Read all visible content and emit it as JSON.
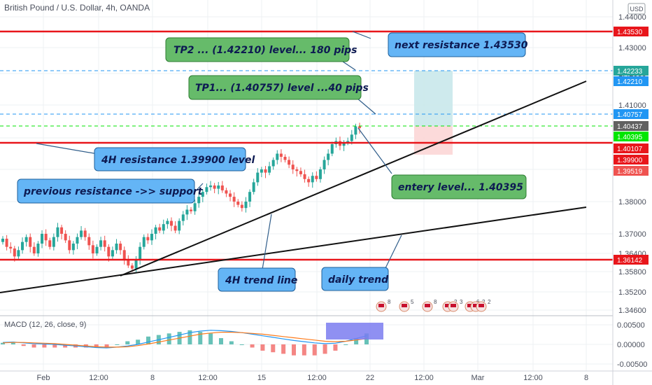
{
  "header": {
    "title": "British Pound / U.S. Dollar, 4h, OANDA",
    "currency_badge": "USD"
  },
  "price_labels": [
    {
      "value": "1.43530",
      "price": 1.4353,
      "color": "#e8161b"
    },
    {
      "value": "1.42233",
      "price": 1.42233,
      "color": "#26a69a"
    },
    {
      "value": "1.42210",
      "price": 1.4221,
      "color": "#2196f3"
    },
    {
      "value": "1.40757",
      "price": 1.40757,
      "color": "#2196f3"
    },
    {
      "value": "1.40437",
      "price": 1.40437,
      "color": "#616161"
    },
    {
      "value": "1.40395",
      "price": 1.40395,
      "color": "#00e600"
    },
    {
      "value": "1.40107",
      "price": 1.40107,
      "color": "#e8161b"
    },
    {
      "value": "1.39900",
      "price": 1.399,
      "color": "#e8161b"
    },
    {
      "value": "1.39519",
      "price": 1.39519,
      "color": "#ef5350"
    },
    {
      "value": "1.36142",
      "price": 1.36142,
      "color": "#e8161b"
    }
  ],
  "annotations": {
    "tp2": "TP2 ... (1.42210) level... 180 pips",
    "next_resistance": "next resistance 1.43530",
    "tp1": "TP1... (1.40757) level ...40 pips",
    "resistance_4h": "4H resistance 1.39900 level",
    "previous_resistance": "previous resistance ->> support",
    "entry": "entery level... 1.40395",
    "trend_4h": "4H trend line",
    "daily_trend": "daily trend"
  },
  "event_badges": [
    "8",
    "5",
    "8",
    "2",
    "3",
    "6",
    "2",
    "2"
  ],
  "macd": {
    "label": "MACD (12, 26, close, 9)",
    "ticks": [
      "0.00500",
      "0.00000",
      "-0.00500"
    ]
  },
  "colors": {
    "up": "#26a69a",
    "down": "#ef5350",
    "resistance": "#e8161b",
    "target": "#2196f3",
    "entry": "#00e600",
    "box_green": "#c9e8eb",
    "box_red": "#fcd6d6",
    "callout_blue": "#64b5f6",
    "callout_green": "#66bb6a",
    "macd_line": "#2196f3",
    "signal_line": "#ff7b1c"
  },
  "chart_data": {
    "type": "candlestick",
    "title": "British Pound / U.S. Dollar, 4h, OANDA",
    "ylim": [
      1.343,
      1.444
    ],
    "y_ticks": [
      1.346,
      1.352,
      1.358,
      1.364,
      1.37,
      1.38,
      1.39,
      1.4,
      1.41,
      1.42,
      1.43,
      1.44
    ],
    "x_ticks": [
      "Feb",
      "12:00",
      "8",
      "12:00",
      "15",
      "12:00",
      "22",
      "12:00",
      "Mar",
      "12:00",
      "8"
    ],
    "close": [
      1.3685,
      1.366,
      1.3655,
      1.363,
      1.365,
      1.3675,
      1.369,
      1.366,
      1.364,
      1.367,
      1.37,
      1.368,
      1.366,
      1.369,
      1.372,
      1.37,
      1.368,
      1.365,
      1.367,
      1.369,
      1.371,
      1.369,
      1.3665,
      1.364,
      1.366,
      1.368,
      1.366,
      1.363,
      1.365,
      1.367,
      1.365,
      1.362,
      1.36,
      1.359,
      1.362,
      1.366,
      1.369,
      1.368,
      1.37,
      1.372,
      1.371,
      1.373,
      1.374,
      1.3725,
      1.371,
      1.374,
      1.376,
      1.3775,
      1.377,
      1.3795,
      1.3815,
      1.383,
      1.3845,
      1.385,
      1.384,
      1.385,
      1.3835,
      1.3825,
      1.3815,
      1.38,
      1.379,
      1.378,
      1.38,
      1.383,
      1.386,
      1.389,
      1.39,
      1.389,
      1.391,
      1.393,
      1.395,
      1.394,
      1.393,
      1.3915,
      1.39,
      1.3895,
      1.3885,
      1.387,
      1.386,
      1.388,
      1.387,
      1.39,
      1.393,
      1.395,
      1.398,
      1.399,
      1.3975,
      1.3985,
      1.399,
      1.401,
      1.4035,
      1.403
    ],
    "series": [
      {
        "name": "MACD",
        "values": [
          0.0005,
          0.0006,
          0.0004,
          0.0002,
          0.0001,
          0.0,
          -0.0002,
          -0.0004,
          -0.0006,
          -0.0008,
          -0.0009,
          -0.0007,
          -0.0004,
          0.0,
          0.0006,
          0.0012,
          0.0018,
          0.0024,
          0.003,
          0.0034,
          0.0036,
          0.0035,
          0.0033,
          0.003,
          0.0026,
          0.0022,
          0.0018,
          0.0014,
          0.001,
          0.0007,
          0.0004,
          0.0002,
          0.0003,
          0.0008,
          0.0015,
          0.0022
        ]
      },
      {
        "name": "Signal",
        "values": [
          0.0004,
          0.0005,
          0.0005,
          0.0004,
          0.0003,
          0.0002,
          0.0,
          -0.0002,
          -0.0004,
          -0.0006,
          -0.0007,
          -0.0007,
          -0.0006,
          -0.0003,
          0.0001,
          0.0006,
          0.0011,
          0.0016,
          0.0021,
          0.0026,
          0.0029,
          0.0031,
          0.0031,
          0.003,
          0.0028,
          0.0026,
          0.0023,
          0.002,
          0.0017,
          0.0014,
          0.0011,
          0.0008,
          0.0007,
          0.0008,
          0.0011,
          0.0015
        ]
      }
    ],
    "macd_ylim": [
      -0.0065,
      0.0065
    ]
  }
}
